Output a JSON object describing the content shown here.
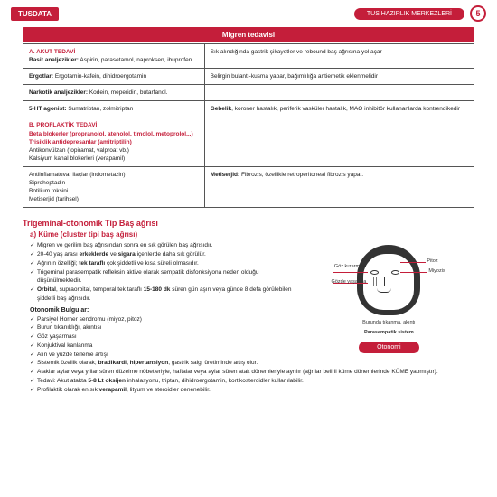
{
  "header": {
    "logo": "TUSDATA",
    "pill": "TUS HAZIRLIK MERKEZLERİ",
    "page": "5"
  },
  "tableTitle": "Migren tedavisi",
  "rows": [
    {
      "l": "<span class='sec-hdr'>A. AKUT TEDAVİ</span><br><span class='bold'>Basit analjezikler:</span> Aspirin, parasetamol, naproksen, ibuprofen",
      "r": "Sık alındığında gastrik şikayetler ve rebound baş ağrısına yol açar"
    },
    {
      "l": "<span class='bold'>Ergotlar:</span> Ergotamin-kafein, dihidroergotamin",
      "r": "Belirgin bulantı-kusma yapar, bağımlılığa antiemetik eklenmelidir"
    },
    {
      "l": "<span class='bold'>Narkotik analjezikler:</span> Kodein, meperidin, butarfanol.",
      "r": ""
    },
    {
      "l": "<span class='bold'>5-HT agonist:</span> Sumatriptan, zolmitriptan",
      "r": "<span class='bold'>Gebelik</span>, koroner hastalık, periferik vasküler hastalık, MAO inhibitör kullananlarda kontrendikedir"
    },
    {
      "l": "<span class='sec-hdr'>B. PROFLAKTİK TEDAVİ</span><br><span class='red'>Beta blokerler (propranolol, atenolol, timolol, metoprolol...)</span><br><span class='red'>Trisiklik antidepresanlar (amitriptilin)</span><br>Antikonvülzan (topiramat, valproat vb.)<br>Kalsiyum kanal blokerleri (verapamil)",
      "r": ""
    },
    {
      "l": "Antiinflamatuvar ilaçlar (indometazin)<br>Siproheptadin<br>Botilium toksini<br>Metiserjid (tarihsel)",
      "r": "<span class='bold'>Metiserjid:</span> Fibrozis, özellikle retroperitoneal fibrozis yapar."
    }
  ],
  "h2": "Trigeminal-otonomik Tip Baş ağrısı",
  "h3": "a) Küme (cluster tipi baş ağrısı)",
  "left": [
    "Migren ve gerilim baş ağrısından sonra en sık görülen baş ağrısıdır.",
    "20-40 yaş arası <b>erkeklerde</b> ve <b>sigara</b> içenlerde daha sık görülür.",
    "Ağrının özelliği; <b>tek taraflı</b> çok şiddetli ve kısa süreli olmasıdır.",
    "Trigeminal parasempatik refleksin aktive olarak sempatik disfonksiyona neden olduğu düşünülmektedir.",
    "<b>Orbital</b>, supraorbital, temporal tek taraflı <b>15-180 dk</b> süren gün aşırı veya günde 8 defa görülebilen şiddetli baş ağrısıdır."
  ],
  "sub": "Otonomik Bulgular:",
  "left2": [
    "Parsiyel Horner sendromu (miyoz, pitoz)",
    "Burun tıkanıklığı, akıntısı",
    "Göz yaşarması",
    "Konjuktival kanlanma",
    "Alın ve yüzde terleme artışı"
  ],
  "labels": {
    "a": "Pitoz",
    "b": "Miyozis",
    "c": "Göz kızarması",
    "d": "Gözde yaşarma",
    "e": "Burunda tıkanma, akıntı",
    "f": "Parasempatik sistem"
  },
  "caption": "Otonomi",
  "below": [
    "Sistemik özellik olarak; <b>bradikardi, hipertansiyon</b>, gastrik salgı üretiminde artış olur.",
    "Ataklar aylar veya yıllar süren düzelme nöbetleriyle, haftalar veya aylar süren atak dönemleriyle ayrılır (ağrılar belirli küme dönemlerinde KÜME yapmıştır).",
    "Tedavi: Akut atakta <b>5-8 Lt oksijen</b> inhalasyonu, triptan, dihidroergotamin, kortikosteroidler kullanılabilir.",
    "Profilaktik olarak en sık <b>verapamil</b>, lityum ve steroidler denenebilir."
  ]
}
